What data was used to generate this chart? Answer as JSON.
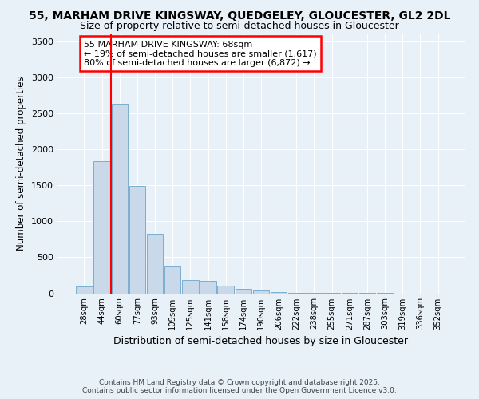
{
  "title_line1": "55, MARHAM DRIVE KINGSWAY, QUEDGELEY, GLOUCESTER, GL2 2DL",
  "title_line2": "Size of property relative to semi-detached houses in Gloucester",
  "xlabel": "Distribution of semi-detached houses by size in Gloucester",
  "ylabel": "Number of semi-detached properties",
  "bin_labels": [
    "28sqm",
    "44sqm",
    "60sqm",
    "77sqm",
    "93sqm",
    "109sqm",
    "125sqm",
    "141sqm",
    "158sqm",
    "174sqm",
    "190sqm",
    "206sqm",
    "222sqm",
    "238sqm",
    "255sqm",
    "271sqm",
    "287sqm",
    "303sqm",
    "319sqm",
    "336sqm",
    "352sqm"
  ],
  "bin_values": [
    95,
    1830,
    2630,
    1490,
    830,
    380,
    185,
    170,
    110,
    60,
    40,
    18,
    8,
    5,
    3,
    2,
    1,
    1,
    0,
    0,
    0
  ],
  "bar_color": "#c9d9ea",
  "bar_edge_color": "#7aaed0",
  "annotation_title": "55 MARHAM DRIVE KINGSWAY: 68sqm",
  "annotation_line2": "← 19% of semi-detached houses are smaller (1,617)",
  "annotation_line3": "80% of semi-detached houses are larger (6,872) →",
  "footer_line1": "Contains HM Land Registry data © Crown copyright and database right 2025.",
  "footer_line2": "Contains public sector information licensed under the Open Government Licence v3.0.",
  "ylim": [
    0,
    3600
  ],
  "yticks": [
    0,
    500,
    1000,
    1500,
    2000,
    2500,
    3000,
    3500
  ],
  "red_line_bin": 1.5,
  "background_color": "#e8f0f8",
  "plot_background": "#e8f0f8"
}
